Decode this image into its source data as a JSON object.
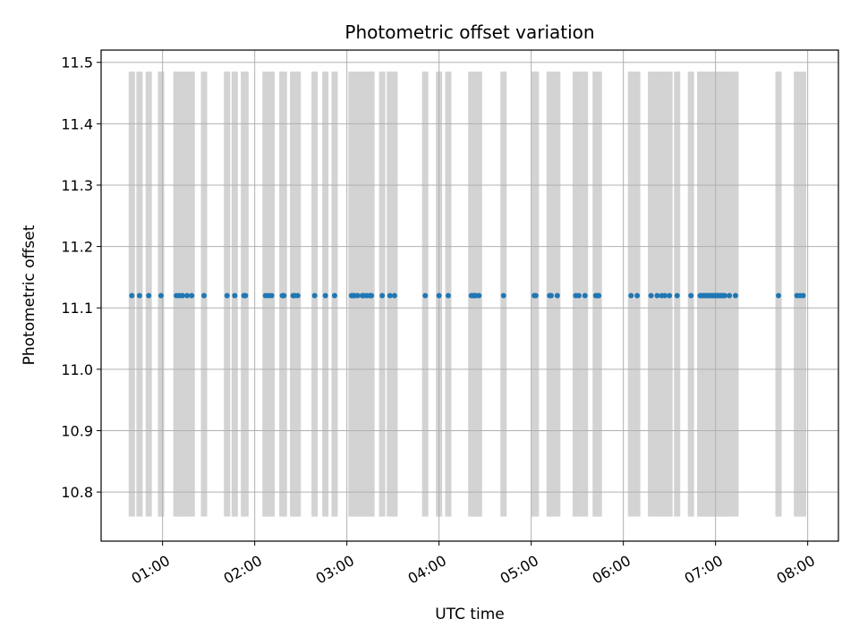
{
  "chart_data": {
    "type": "scatter",
    "title": "Photometric offset variation",
    "xlabel": "UTC time",
    "ylabel": "Photometric offset",
    "xlim": [
      "00:20",
      "08:20"
    ],
    "ylim": [
      10.72,
      11.52
    ],
    "x_ticks": [
      "01:00",
      "02:00",
      "03:00",
      "04:00",
      "05:00",
      "06:00",
      "07:00",
      "08:00"
    ],
    "y_ticks": [
      "10.8",
      "10.9",
      "11.0",
      "11.1",
      "11.2",
      "11.3",
      "11.4",
      "11.5"
    ],
    "grid": true,
    "band_range": [
      10.76,
      11.485
    ],
    "colors": {
      "points": "#1f77b4",
      "bands": "#d3d3d3",
      "grid": "#b0b0b0"
    },
    "series": [
      {
        "values_constant": 11.12,
        "x": [
          "00:40",
          "00:45",
          "00:51",
          "00:59",
          "01:09",
          "01:11",
          "01:13",
          "01:16",
          "01:19",
          "01:27",
          "01:42",
          "01:47",
          "01:53",
          "01:54",
          "02:07",
          "02:09",
          "02:11",
          "02:18",
          "02:19",
          "02:25",
          "02:26",
          "02:28",
          "02:39",
          "02:46",
          "02:52",
          "03:03",
          "03:04",
          "03:05",
          "03:07",
          "03:10",
          "03:11",
          "03:13",
          "03:15",
          "03:16",
          "03:23",
          "03:28",
          "03:31",
          "03:51",
          "04:00",
          "04:06",
          "04:21",
          "04:22",
          "04:23",
          "04:24",
          "04:26",
          "04:42",
          "05:02",
          "05:03",
          "05:12",
          "05:13",
          "05:17",
          "05:29",
          "05:31",
          "05:35",
          "05:42",
          "05:43",
          "05:44",
          "06:05",
          "06:09",
          "06:18",
          "06:22",
          "06:25",
          "06:27",
          "06:30",
          "06:35",
          "06:44",
          "06:50",
          "06:51",
          "06:52",
          "06:53",
          "06:54",
          "06:55",
          "06:56",
          "06:57",
          "06:58",
          "06:59",
          "07:00",
          "07:01",
          "07:02",
          "07:03",
          "07:04",
          "07:05",
          "07:06",
          "07:09",
          "07:13",
          "07:41",
          "07:53",
          "07:55",
          "07:57"
        ]
      }
    ]
  }
}
